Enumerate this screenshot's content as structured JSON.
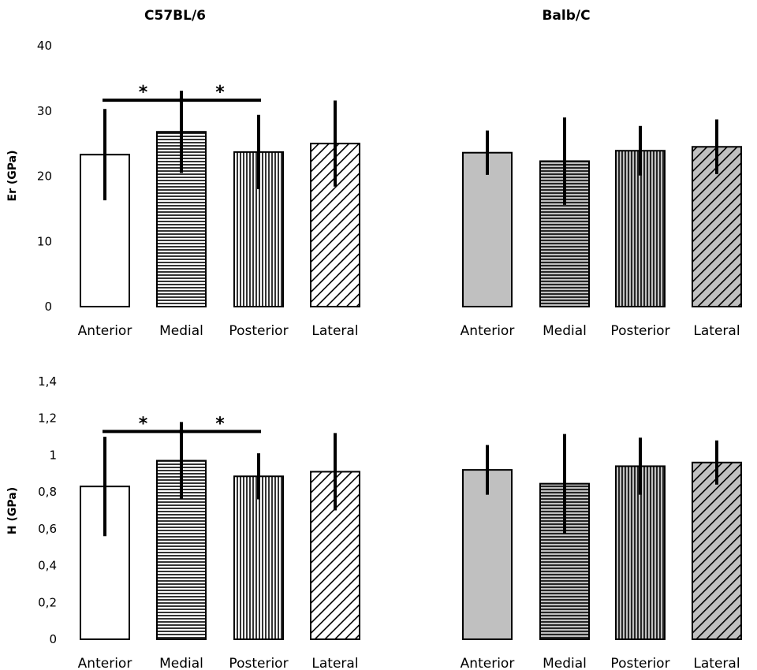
{
  "colors": {
    "background": "#ffffff",
    "stroke": "#000000",
    "grey_fill": "#c0c0c0"
  },
  "chart_data": {
    "type": "bar",
    "titles": [
      "C57BL/6",
      "Balb/C"
    ],
    "groups": [
      "C57BL/6",
      "Balb/C"
    ],
    "categories": [
      "Anterior",
      "Medial",
      "Posterior",
      "Lateral"
    ],
    "significance": [
      {
        "from": "Anterior",
        "to": "Medial",
        "label": "*"
      },
      {
        "from": "Medial",
        "to": "Posterior",
        "label": "*"
      }
    ],
    "panels": [
      {
        "id": "er",
        "ylabel": "Er (GPa)",
        "ylim": [
          0,
          40
        ],
        "yticks": [
          0,
          10,
          20,
          30,
          40
        ],
        "ytick_labels": [
          "0",
          "10",
          "20",
          "30",
          "40"
        ],
        "series": [
          {
            "name": "C57BL/6",
            "values": [
              23.3,
              26.8,
              23.7,
              25.0
            ],
            "errors": [
              7.0,
              6.3,
              5.7,
              6.6
            ]
          },
          {
            "name": "Balb/C",
            "values": [
              23.6,
              22.3,
              23.9,
              24.5
            ],
            "errors": [
              3.4,
              6.7,
              3.8,
              4.2
            ]
          }
        ]
      },
      {
        "id": "h",
        "ylabel": "H (GPa)",
        "ylim": [
          0,
          1.4
        ],
        "yticks": [
          0,
          0.2,
          0.4,
          0.6,
          0.8,
          1.0,
          1.2,
          1.4
        ],
        "ytick_labels": [
          "0",
          "0,2",
          "0,4",
          "0,6",
          "0,8",
          "1",
          "1,2",
          "1,4"
        ],
        "series": [
          {
            "name": "C57BL/6",
            "values": [
              0.83,
              0.97,
              0.885,
              0.91
            ],
            "errors": [
              0.27,
              0.21,
              0.125,
              0.21
            ]
          },
          {
            "name": "Balb/C",
            "values": [
              0.92,
              0.845,
              0.94,
              0.96
            ],
            "errors": [
              0.135,
              0.27,
              0.155,
              0.12
            ]
          }
        ]
      }
    ]
  }
}
